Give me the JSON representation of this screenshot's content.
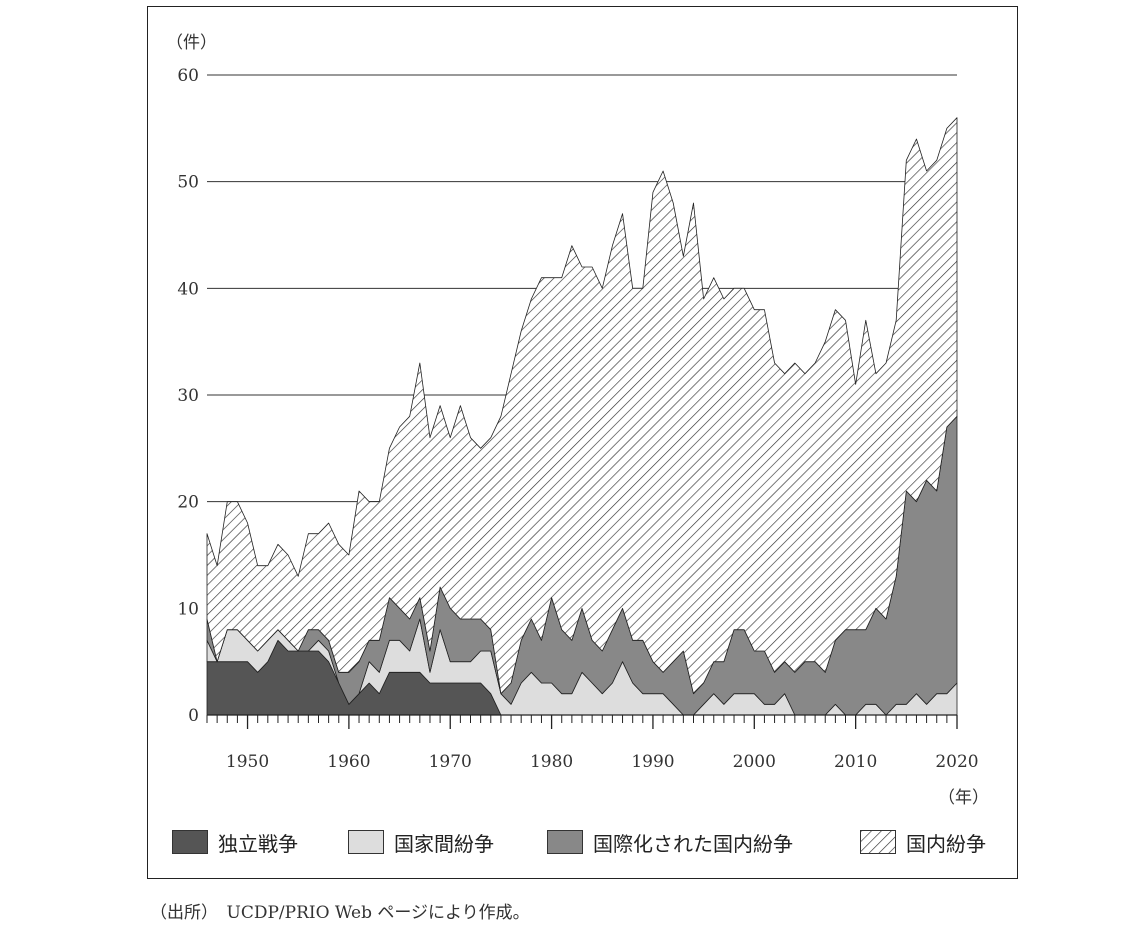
{
  "chart_data": {
    "type": "area",
    "stacked": true,
    "ylabel": "（件）",
    "xlabel": "（年）",
    "ylim": [
      0,
      60
    ],
    "yticks": [
      0,
      10,
      20,
      30,
      40,
      50,
      60
    ],
    "xlim": [
      1946,
      2020
    ],
    "xticks": [
      1950,
      1960,
      1970,
      1980,
      1990,
      2000,
      2010,
      2020
    ],
    "grid": "horizontal",
    "legend_position": "bottom",
    "x": [
      1946,
      1947,
      1948,
      1949,
      1950,
      1951,
      1952,
      1953,
      1954,
      1955,
      1956,
      1957,
      1958,
      1959,
      1960,
      1961,
      1962,
      1963,
      1964,
      1965,
      1966,
      1967,
      1968,
      1969,
      1970,
      1971,
      1972,
      1973,
      1974,
      1975,
      1976,
      1977,
      1978,
      1979,
      1980,
      1981,
      1982,
      1983,
      1984,
      1985,
      1986,
      1987,
      1988,
      1989,
      1990,
      1991,
      1992,
      1993,
      1994,
      1995,
      1996,
      1997,
      1998,
      1999,
      2000,
      2001,
      2002,
      2003,
      2004,
      2005,
      2006,
      2007,
      2008,
      2009,
      2010,
      2011,
      2012,
      2013,
      2014,
      2015,
      2016,
      2017,
      2018,
      2019,
      2020
    ],
    "series": [
      {
        "name": "独立戦争",
        "color": "#555555",
        "pattern": "solid-dark",
        "values": [
          5,
          5,
          5,
          5,
          5,
          4,
          5,
          7,
          6,
          6,
          6,
          6,
          5,
          3,
          1,
          2,
          3,
          2,
          4,
          4,
          4,
          4,
          3,
          3,
          3,
          3,
          3,
          3,
          2,
          0,
          0,
          0,
          0,
          0,
          0,
          0,
          0,
          0,
          0,
          0,
          0,
          0,
          0,
          0,
          0,
          0,
          0,
          0,
          0,
          0,
          0,
          0,
          0,
          0,
          0,
          0,
          0,
          0,
          0,
          0,
          0,
          0,
          0,
          0,
          0,
          0,
          0,
          0,
          0,
          0,
          0,
          0,
          0,
          0,
          0
        ]
      },
      {
        "name": "国家間紛争",
        "color": "#dddddd",
        "pattern": "solid-light",
        "values": [
          2,
          0,
          3,
          3,
          2,
          2,
          2,
          1,
          1,
          0,
          0,
          1,
          1,
          0,
          0,
          0,
          2,
          2,
          3,
          3,
          2,
          5,
          1,
          5,
          2,
          2,
          2,
          3,
          4,
          2,
          1,
          3,
          4,
          3,
          3,
          2,
          2,
          4,
          3,
          2,
          3,
          5,
          3,
          2,
          2,
          2,
          1,
          0,
          0,
          1,
          2,
          1,
          2,
          2,
          2,
          1,
          1,
          2,
          0,
          0,
          0,
          0,
          1,
          0,
          0,
          1,
          1,
          0,
          1,
          1,
          2,
          1,
          2,
          2,
          3
        ]
      },
      {
        "name": "国際化された国内紛争",
        "color": "#888888",
        "pattern": "solid-mid",
        "values": [
          2,
          0,
          0,
          0,
          0,
          0,
          0,
          0,
          0,
          0,
          2,
          1,
          1,
          1,
          3,
          3,
          2,
          3,
          4,
          3,
          3,
          2,
          2,
          4,
          5,
          4,
          4,
          3,
          2,
          0,
          2,
          4,
          5,
          4,
          8,
          6,
          5,
          6,
          4,
          4,
          5,
          5,
          4,
          5,
          3,
          2,
          4,
          6,
          2,
          2,
          3,
          4,
          6,
          6,
          4,
          5,
          3,
          3,
          4,
          5,
          5,
          4,
          6,
          8,
          8,
          7,
          9,
          9,
          12,
          20,
          18,
          21,
          19,
          25,
          25
        ]
      },
      {
        "name": "国内紛争",
        "color": "#ffffff",
        "pattern": "hatch",
        "values": [
          8,
          9,
          12,
          12,
          11,
          8,
          7,
          8,
          8,
          7,
          9,
          9,
          11,
          12,
          11,
          16,
          13,
          13,
          14,
          17,
          19,
          22,
          20,
          17,
          16,
          20,
          17,
          16,
          18,
          26,
          29,
          29,
          30,
          34,
          30,
          33,
          37,
          32,
          35,
          34,
          36,
          37,
          33,
          33,
          44,
          47,
          43,
          37,
          46,
          36,
          36,
          34,
          32,
          32,
          32,
          32,
          29,
          27,
          29,
          27,
          28,
          31,
          31,
          29,
          23,
          29,
          22,
          24,
          24,
          31,
          34,
          29,
          31,
          28,
          28
        ]
      }
    ]
  },
  "legend": {
    "items": [
      {
        "label": "独立戦争"
      },
      {
        "label": "国家間紛争"
      },
      {
        "label": "国際化された国内紛争"
      },
      {
        "label": "国内紛争"
      }
    ]
  },
  "source": "（出所）　UCDP/PRIO Web ページにより作成。"
}
